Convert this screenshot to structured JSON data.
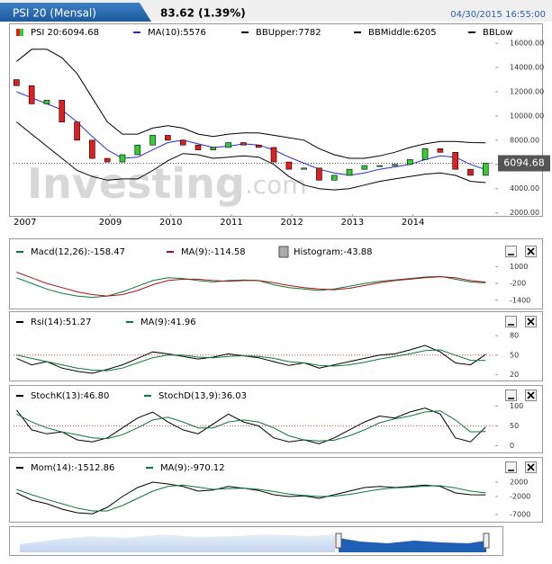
{
  "header": {
    "title": "PSI 20 (Mensal)",
    "quote": "83.62 (1.39%)",
    "timestamp": "04/30/2015 16:55:00",
    "price_label": "6094.68",
    "watermark": "Investing",
    "watermark_suffix": ".com"
  },
  "chart_data": [
    {
      "type": "candlestick",
      "legend": [
        "PSI 20:6094.68",
        "MA(10):5576",
        "BBUpper:7782",
        "BBMiddle:6205",
        "BBLow"
      ],
      "x": [
        2007.45,
        2007.7,
        2007.95,
        2008.2,
        2008.45,
        2008.7,
        2008.95,
        2009.2,
        2009.45,
        2009.7,
        2009.95,
        2010.2,
        2010.45,
        2010.7,
        2010.95,
        2011.2,
        2011.45,
        2011.7,
        2011.95,
        2012.2,
        2012.45,
        2012.7,
        2012.95,
        2013.2,
        2013.45,
        2013.7,
        2013.95,
        2014.2,
        2014.45,
        2014.7,
        2014.95,
        2015.2
      ],
      "open": [
        13000,
        12500,
        11000,
        11300,
        9500,
        8000,
        6500,
        6200,
        6800,
        7600,
        8400,
        8000,
        7600,
        7200,
        7400,
        7800,
        7600,
        7400,
        6200,
        5600,
        5700,
        4700,
        5100,
        5600,
        5900,
        5900,
        6000,
        6400,
        7300,
        7000,
        5600,
        5100
      ],
      "close": [
        12500,
        11000,
        11300,
        9500,
        8000,
        6500,
        6200,
        6800,
        7600,
        8400,
        8000,
        7600,
        7200,
        7400,
        7800,
        7600,
        7400,
        6200,
        5600,
        5700,
        4700,
        5100,
        5600,
        5900,
        5900,
        6000,
        6400,
        7300,
        7000,
        5600,
        5100,
        6095
      ],
      "up_color": "#33cc33",
      "down_color": "#e02020",
      "series": [
        {
          "name": "MA(10)",
          "color": "#1f2fd8",
          "values": [
            12000,
            11500,
            11000,
            10500,
            9500,
            8300,
            7200,
            6500,
            6600,
            7200,
            7800,
            8000,
            7700,
            7400,
            7500,
            7700,
            7600,
            7200,
            6600,
            6100,
            5600,
            5300,
            5100,
            5300,
            5600,
            5800,
            6000,
            6400,
            6700,
            6600,
            6000,
            5576
          ]
        },
        {
          "name": "BBUpper",
          "color": "#000000",
          "values": [
            14500,
            15500,
            15500,
            14800,
            13500,
            11500,
            9500,
            8500,
            8500,
            9000,
            9200,
            9000,
            8500,
            8300,
            8500,
            8600,
            8600,
            8400,
            8200,
            8000,
            7300,
            6800,
            6500,
            6500,
            6700,
            7000,
            7400,
            7700,
            7900,
            7900,
            7800,
            7782
          ]
        },
        {
          "name": "BBLow",
          "color": "#000000",
          "values": [
            9500,
            8500,
            7500,
            6500,
            5500,
            5000,
            4700,
            4800,
            4800,
            5500,
            6300,
            6900,
            6800,
            6500,
            6600,
            6700,
            6600,
            6000,
            5000,
            4300,
            4000,
            3900,
            4000,
            4300,
            4600,
            4800,
            5000,
            5200,
            5300,
            5100,
            4600,
            4500
          ]
        }
      ],
      "xlim": [
        2007.4,
        2015.33
      ],
      "xticks": [
        2007,
        2009,
        2010,
        2011,
        2012,
        2013,
        2014
      ],
      "ylim": [
        1900,
        16600
      ],
      "yticks": [
        {
          "value": 2000,
          "label": "2000.00"
        },
        {
          "value": 4000,
          "label": "4000.00"
        },
        {
          "value": 6000,
          "label": "6000.00"
        },
        {
          "value": 8000,
          "label": "8000.00"
        },
        {
          "value": 10000,
          "label": "10000.00"
        },
        {
          "value": 12000,
          "label": "12000.00"
        },
        {
          "value": 14000,
          "label": "14000.00"
        },
        {
          "value": 16000,
          "label": "16000.00"
        }
      ]
    },
    {
      "type": "line",
      "legend": [
        "Macd(12,26):-158.47",
        "MA(9):-114.58",
        "Histogram:-43.88"
      ],
      "series": [
        {
          "name": "Macd",
          "color": "#0a7a3a",
          "values": [
            200,
            -200,
            -600,
            -900,
            -1100,
            -1200,
            -1100,
            -800,
            -400,
            0,
            200,
            150,
            0,
            -100,
            0,
            50,
            0,
            -300,
            -500,
            -600,
            -700,
            -600,
            -400,
            -200,
            -50,
            50,
            150,
            250,
            300,
            100,
            -100,
            -158
          ]
        },
        {
          "name": "MA(9)",
          "color": "#b01010",
          "values": [
            600,
            200,
            -200,
            -500,
            -800,
            -1000,
            -1100,
            -1000,
            -700,
            -300,
            0,
            100,
            100,
            0,
            -50,
            0,
            0,
            -150,
            -350,
            -500,
            -600,
            -650,
            -550,
            -350,
            -150,
            0,
            100,
            200,
            280,
            200,
            0,
            -115
          ]
        }
      ],
      "ylim": [
        -1800,
        1600
      ],
      "yticks": [
        -1400,
        -200,
        1000
      ]
    },
    {
      "type": "line",
      "legend": [
        "Rsi(14):51.27",
        "MA(9):41.96"
      ],
      "series": [
        {
          "name": "Rsi",
          "color": "#000000",
          "values": [
            45,
            35,
            40,
            30,
            25,
            22,
            28,
            35,
            45,
            55,
            52,
            48,
            44,
            47,
            52,
            49,
            46,
            40,
            34,
            38,
            30,
            35,
            40,
            45,
            50,
            52,
            58,
            65,
            55,
            38,
            35,
            51
          ]
        },
        {
          "name": "MA(9)",
          "color": "#0a7a3a",
          "values": [
            50,
            45,
            40,
            35,
            30,
            27,
            26,
            30,
            38,
            46,
            50,
            50,
            47,
            46,
            48,
            49,
            48,
            45,
            40,
            38,
            34,
            33,
            35,
            39,
            44,
            48,
            52,
            57,
            58,
            50,
            42,
            42
          ]
        }
      ],
      "ylim": [
        15,
        90
      ],
      "yticks": [
        20,
        50,
        80
      ],
      "level": 50
    },
    {
      "type": "line",
      "legend": [
        "StochK(13):46.80",
        "StochD(13,9):36.03"
      ],
      "series": [
        {
          "name": "StochK",
          "color": "#000000",
          "values": [
            90,
            40,
            30,
            35,
            15,
            10,
            20,
            45,
            70,
            85,
            60,
            40,
            30,
            55,
            80,
            60,
            50,
            20,
            10,
            15,
            5,
            20,
            40,
            60,
            75,
            70,
            85,
            95,
            80,
            20,
            10,
            47
          ]
        },
        {
          "name": "StochD",
          "color": "#0a7a3a",
          "values": [
            80,
            60,
            45,
            35,
            28,
            20,
            18,
            28,
            45,
            65,
            72,
            60,
            45,
            45,
            60,
            65,
            60,
            45,
            25,
            15,
            12,
            14,
            25,
            40,
            58,
            68,
            75,
            85,
            88,
            65,
            35,
            36
          ]
        }
      ],
      "ylim": [
        -10,
        110
      ],
      "yticks": [
        0,
        50,
        100
      ],
      "level": 50
    },
    {
      "type": "line",
      "legend": [
        "Mom(14):-1512.86",
        "MA(9):-970.12"
      ],
      "series": [
        {
          "name": "Mom",
          "color": "#000000",
          "values": [
            -1000,
            -3000,
            -4000,
            -5500,
            -6500,
            -6800,
            -5000,
            -2000,
            500,
            2000,
            1500,
            800,
            -500,
            -200,
            800,
            300,
            -300,
            -1500,
            -2000,
            -1800,
            -2500,
            -1500,
            -500,
            500,
            800,
            500,
            800,
            1200,
            800,
            -1000,
            -1500,
            -1513
          ]
        },
        {
          "name": "MA(9)",
          "color": "#0a7a3a",
          "values": [
            0,
            -1500,
            -2800,
            -4000,
            -5200,
            -6000,
            -6000,
            -4500,
            -2500,
            -500,
            800,
            1200,
            600,
            0,
            200,
            300,
            0,
            -600,
            -1300,
            -1700,
            -2000,
            -1900,
            -1400,
            -700,
            0,
            400,
            600,
            900,
            1000,
            400,
            -500,
            -970
          ]
        }
      ],
      "ylim": [
        -8500,
        4500
      ],
      "yticks": [
        -7000,
        -2000,
        2000
      ]
    }
  ]
}
